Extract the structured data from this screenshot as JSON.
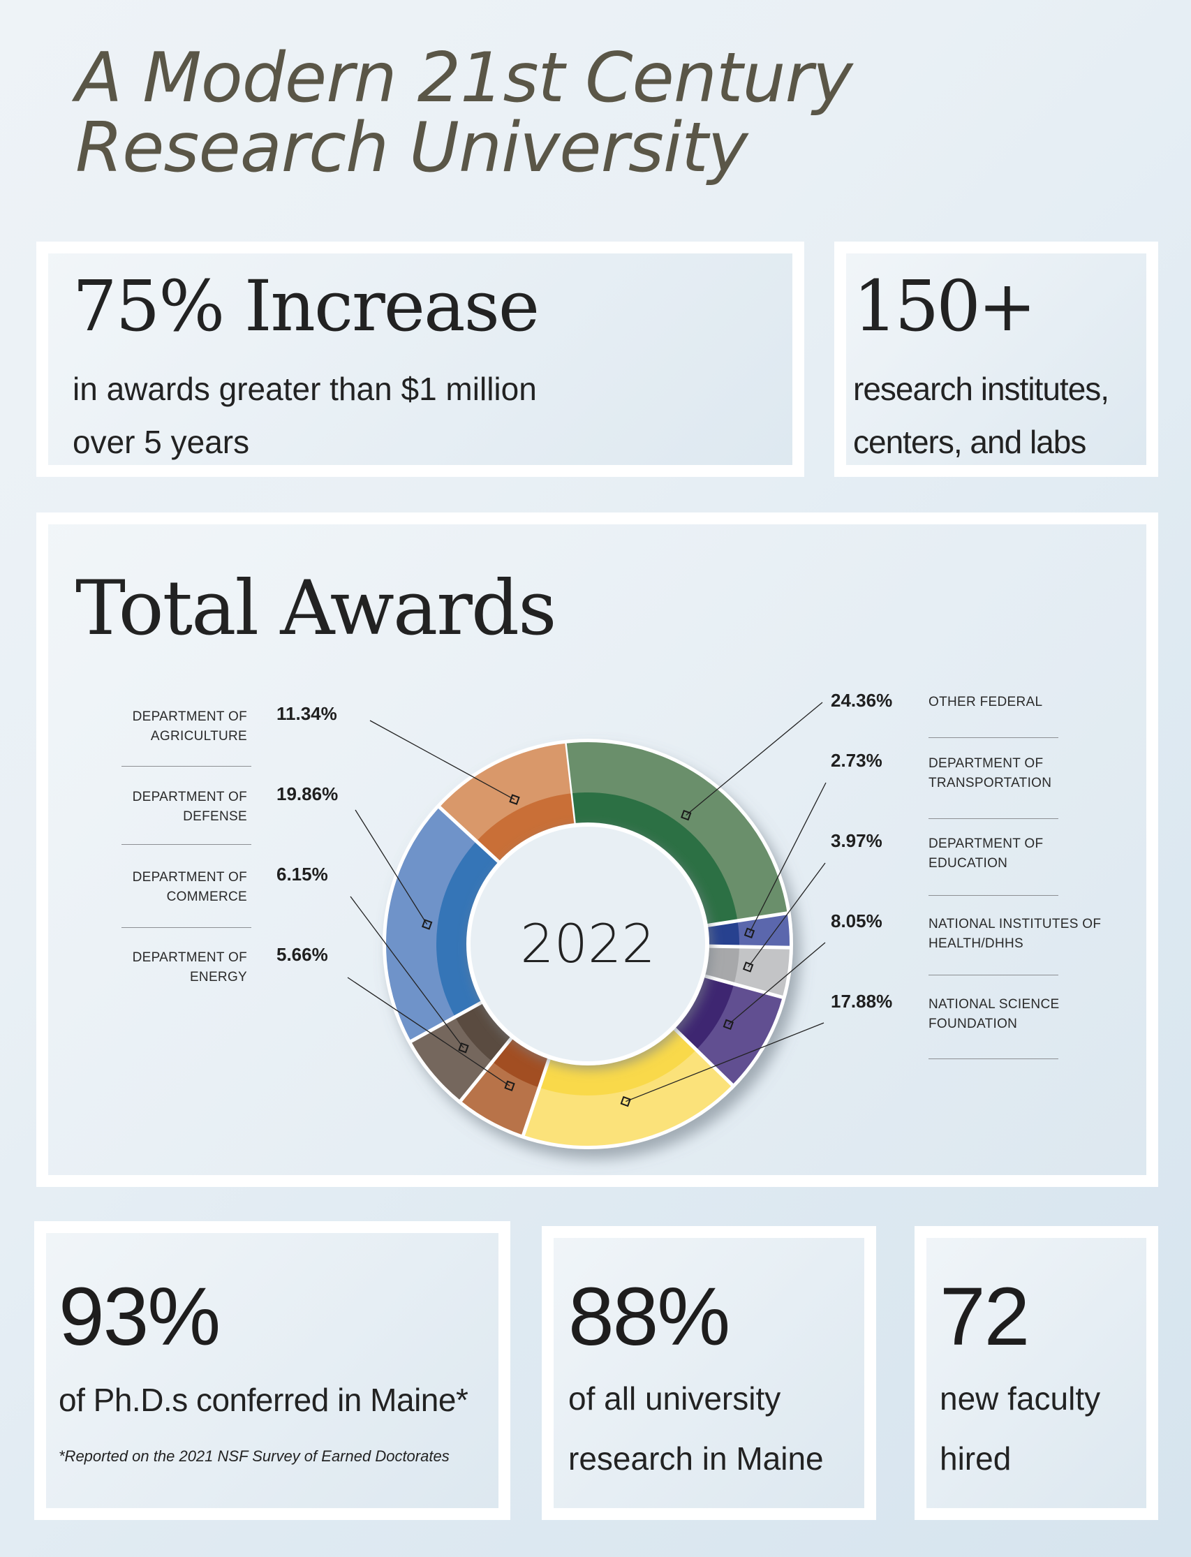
{
  "title": {
    "line1": "A Modern 21st Century",
    "line2": "Research University"
  },
  "stats_top": [
    {
      "value": "75% Increase",
      "line1": "in awards greater than $1 million",
      "line2": "over 5 years"
    },
    {
      "value": "150+",
      "line1": "research institutes,",
      "line2": "centers, and labs"
    }
  ],
  "total_awards": {
    "heading": "Total Awards",
    "center_label": "2022"
  },
  "chart_data": {
    "type": "pie",
    "subtype": "donut",
    "title": "Total Awards",
    "center_label": "2022",
    "unit": "%",
    "categories": [
      "Other Federal",
      "Department of Transportation",
      "Department of Education",
      "National Institutes of Health/DHHS",
      "National Science Foundation",
      "Department of Energy",
      "Department of Commerce",
      "Department of Defense",
      "Department of Agriculture"
    ],
    "values": [
      24.36,
      2.73,
      3.97,
      8.05,
      17.88,
      5.66,
      6.15,
      19.86,
      11.34
    ],
    "colors_outer": [
      "#6a8f6b",
      "#5b67ad",
      "#c3c4c6",
      "#614f91",
      "#fbe27a",
      "#b87349",
      "#75675d",
      "#6f93c9",
      "#d9986a"
    ],
    "colors_inner": [
      "#2c7044",
      "#27418f",
      "#a7a8aa",
      "#3e2671",
      "#f9d94a",
      "#a24e22",
      "#5a4b40",
      "#3575b7",
      "#c96f37"
    ],
    "start_angle_deg": -6.5,
    "legend_position": "labels with leader lines, left and right"
  },
  "labels_left": [
    {
      "name": "DEPARTMENT OF\nAGRICULTURE",
      "line1": "DEPARTMENT OF",
      "line2": "AGRICULTURE",
      "pct": "11.34%"
    },
    {
      "line1": "DEPARTMENT OF",
      "line2": "DEFENSE",
      "pct": "19.86%"
    },
    {
      "line1": "DEPARTMENT OF",
      "line2": "COMMERCE",
      "pct": "6.15%"
    },
    {
      "line1": "DEPARTMENT OF",
      "line2": "ENERGY",
      "pct": "5.66%"
    }
  ],
  "labels_right": [
    {
      "line1": "OTHER FEDERAL",
      "line2": "",
      "pct": "24.36%"
    },
    {
      "line1": "DEPARTMENT OF",
      "line2": "TRANSPORTATION",
      "pct": "2.73%"
    },
    {
      "line1": "DEPARTMENT OF",
      "line2": "EDUCATION",
      "pct": "3.97%"
    },
    {
      "line1": "NATIONAL INSTITUTES OF",
      "line2": "HEALTH/DHHS",
      "pct": "8.05%"
    },
    {
      "line1": "NATIONAL SCIENCE",
      "line2": "FOUNDATION",
      "pct": "17.88%"
    }
  ],
  "stats_bottom": [
    {
      "value": "93%",
      "line1": "of Ph.D.s conferred in Maine*",
      "line2": "",
      "footnote": "*Reported on the 2021 NSF Survey of Earned Doctorates"
    },
    {
      "value": "88%",
      "line1": "of all university",
      "line2": "research in Maine"
    },
    {
      "value": "72",
      "line1": "new faculty",
      "line2": "hired"
    }
  ]
}
